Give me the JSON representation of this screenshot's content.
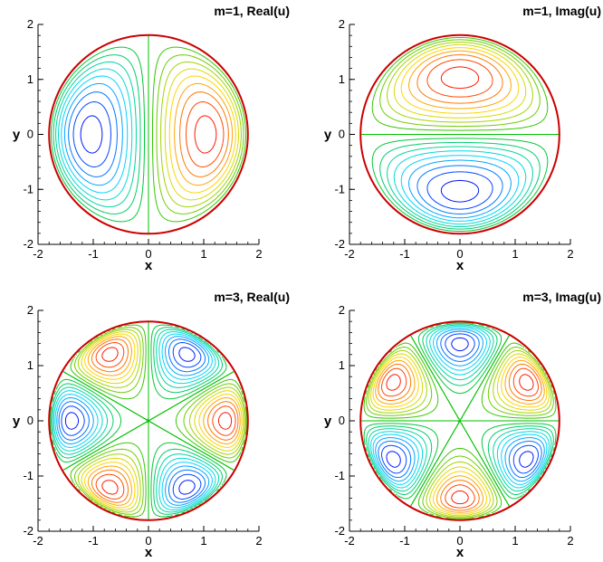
{
  "chart_data": [
    {
      "type": "contour",
      "title": "m=1, Real(u)",
      "xlabel": "x",
      "ylabel": "y",
      "xlim": [
        -2,
        2
      ],
      "ylim": [
        -2,
        2
      ],
      "xticks": [
        "-2",
        "-1",
        "0",
        "1",
        "2"
      ],
      "yticks": [
        "-2",
        "-1",
        "0",
        "1",
        "2"
      ],
      "domain_radius": 1.8,
      "mode_m": 1,
      "component": "real",
      "extrema": [
        {
          "x": -1.2,
          "y": 0,
          "kind": "min"
        },
        {
          "x": 1.2,
          "y": 0,
          "kind": "max"
        }
      ],
      "colormap": [
        "#0000ff",
        "#00e0ff",
        "#00c000",
        "#ffe000",
        "#ff0000"
      ],
      "boundary_color": "#cc0000"
    },
    {
      "type": "contour",
      "title": "m=1, Imag(u)",
      "xlabel": "x",
      "ylabel": "y",
      "xlim": [
        -2,
        2
      ],
      "ylim": [
        -2,
        2
      ],
      "xticks": [
        "-2",
        "-1",
        "0",
        "1",
        "2"
      ],
      "yticks": [
        "-2",
        "-1",
        "0",
        "1",
        "2"
      ],
      "domain_radius": 1.8,
      "mode_m": 1,
      "component": "imaginary",
      "extrema": [
        {
          "x": 0,
          "y": 1.2,
          "kind": "max"
        },
        {
          "x": 0,
          "y": -1.2,
          "kind": "min"
        }
      ],
      "colormap": [
        "#0000ff",
        "#00e0ff",
        "#00c000",
        "#ffe000",
        "#ff0000"
      ],
      "boundary_color": "#cc0000"
    },
    {
      "type": "contour",
      "title": "m=3, Real(u)",
      "xlabel": "x",
      "ylabel": "y",
      "xlim": [
        -2,
        2
      ],
      "ylim": [
        -2,
        2
      ],
      "xticks": [
        "-2",
        "-1",
        "0",
        "1",
        "2"
      ],
      "yticks": [
        "-2",
        "-1",
        "0",
        "1",
        "2"
      ],
      "domain_radius": 1.8,
      "mode_m": 3,
      "component": "real",
      "extrema": [
        {
          "x": 1.2,
          "y": 0,
          "kind": "max"
        },
        {
          "x": 0.6,
          "y": 1.04,
          "kind": "min"
        },
        {
          "x": -0.6,
          "y": 1.04,
          "kind": "max"
        },
        {
          "x": -1.2,
          "y": 0,
          "kind": "min"
        },
        {
          "x": -0.6,
          "y": -1.04,
          "kind": "max"
        },
        {
          "x": 0.6,
          "y": -1.04,
          "kind": "min"
        }
      ],
      "colormap": [
        "#0000ff",
        "#00e0ff",
        "#00c000",
        "#ffe000",
        "#ff0000"
      ],
      "boundary_color": "#cc0000"
    },
    {
      "type": "contour",
      "title": "m=3, Imag(u)",
      "xlabel": "x",
      "ylabel": "y",
      "xlim": [
        -2,
        2
      ],
      "ylim": [
        -2,
        2
      ],
      "xticks": [
        "-2",
        "-1",
        "0",
        "1",
        "2"
      ],
      "yticks": [
        "-2",
        "-1",
        "0",
        "1",
        "2"
      ],
      "domain_radius": 1.8,
      "mode_m": 3,
      "component": "imaginary",
      "extrema": [
        {
          "x": 0,
          "y": 1.2,
          "kind": "min"
        },
        {
          "x": 1.04,
          "y": 0.6,
          "kind": "max"
        },
        {
          "x": 1.04,
          "y": -0.6,
          "kind": "min"
        },
        {
          "x": 0,
          "y": -1.2,
          "kind": "max"
        },
        {
          "x": -1.04,
          "y": -0.6,
          "kind": "min"
        },
        {
          "x": -1.04,
          "y": 0.6,
          "kind": "max"
        }
      ],
      "colormap": [
        "#0000ff",
        "#00e0ff",
        "#00c000",
        "#ffe000",
        "#ff0000"
      ],
      "boundary_color": "#cc0000"
    }
  ]
}
